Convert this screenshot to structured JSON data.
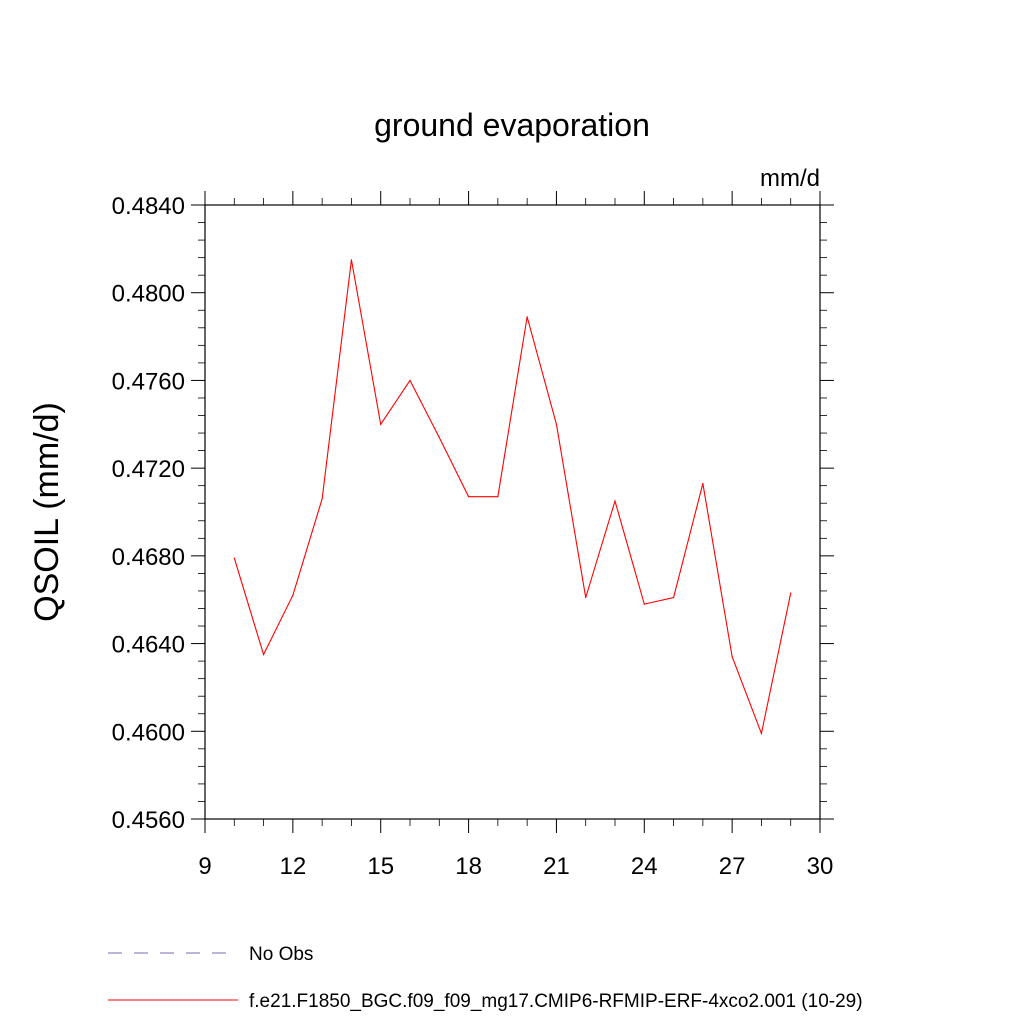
{
  "chart_data": {
    "type": "line",
    "title": "ground evaporation",
    "units": "mm/d",
    "xlabel": "",
    "ylabel": "QSOIL  (mm/d)",
    "xlim": [
      9,
      30
    ],
    "ylim": [
      0.456,
      0.484
    ],
    "x_ticks": [
      9,
      12,
      15,
      18,
      21,
      24,
      27,
      30
    ],
    "y_ticks": [
      "0.4560",
      "0.4600",
      "0.4640",
      "0.4680",
      "0.4720",
      "0.4760",
      "0.4800",
      "0.4840"
    ],
    "series": [
      {
        "name": "f.e21.F1850_BGC.f09_f09_mg17.CMIP6-RFMIP-ERF-4xco2.001 (10-29)",
        "color": "#ff0000",
        "style": "solid",
        "x": [
          10,
          11,
          12,
          13,
          14,
          15,
          16,
          17,
          18,
          19,
          20,
          21,
          22,
          23,
          24,
          25,
          26,
          27,
          28,
          29
        ],
        "values": [
          0.4679,
          0.4635,
          0.4662,
          0.4706,
          0.4815,
          0.474,
          0.476,
          0.4734,
          0.4707,
          0.4707,
          0.4789,
          0.474,
          0.4661,
          0.4705,
          0.4658,
          0.4661,
          0.4713,
          0.4634,
          0.4599,
          0.4663
        ]
      }
    ],
    "legend": [
      {
        "label": "No Obs",
        "color": "#7b68b0",
        "style": "dashed"
      },
      {
        "label": "f.e21.F1850_BGC.f09_f09_mg17.CMIP6-RFMIP-ERF-4xco2.001 (10-29)",
        "color": "#ff0000",
        "style": "solid"
      }
    ]
  }
}
